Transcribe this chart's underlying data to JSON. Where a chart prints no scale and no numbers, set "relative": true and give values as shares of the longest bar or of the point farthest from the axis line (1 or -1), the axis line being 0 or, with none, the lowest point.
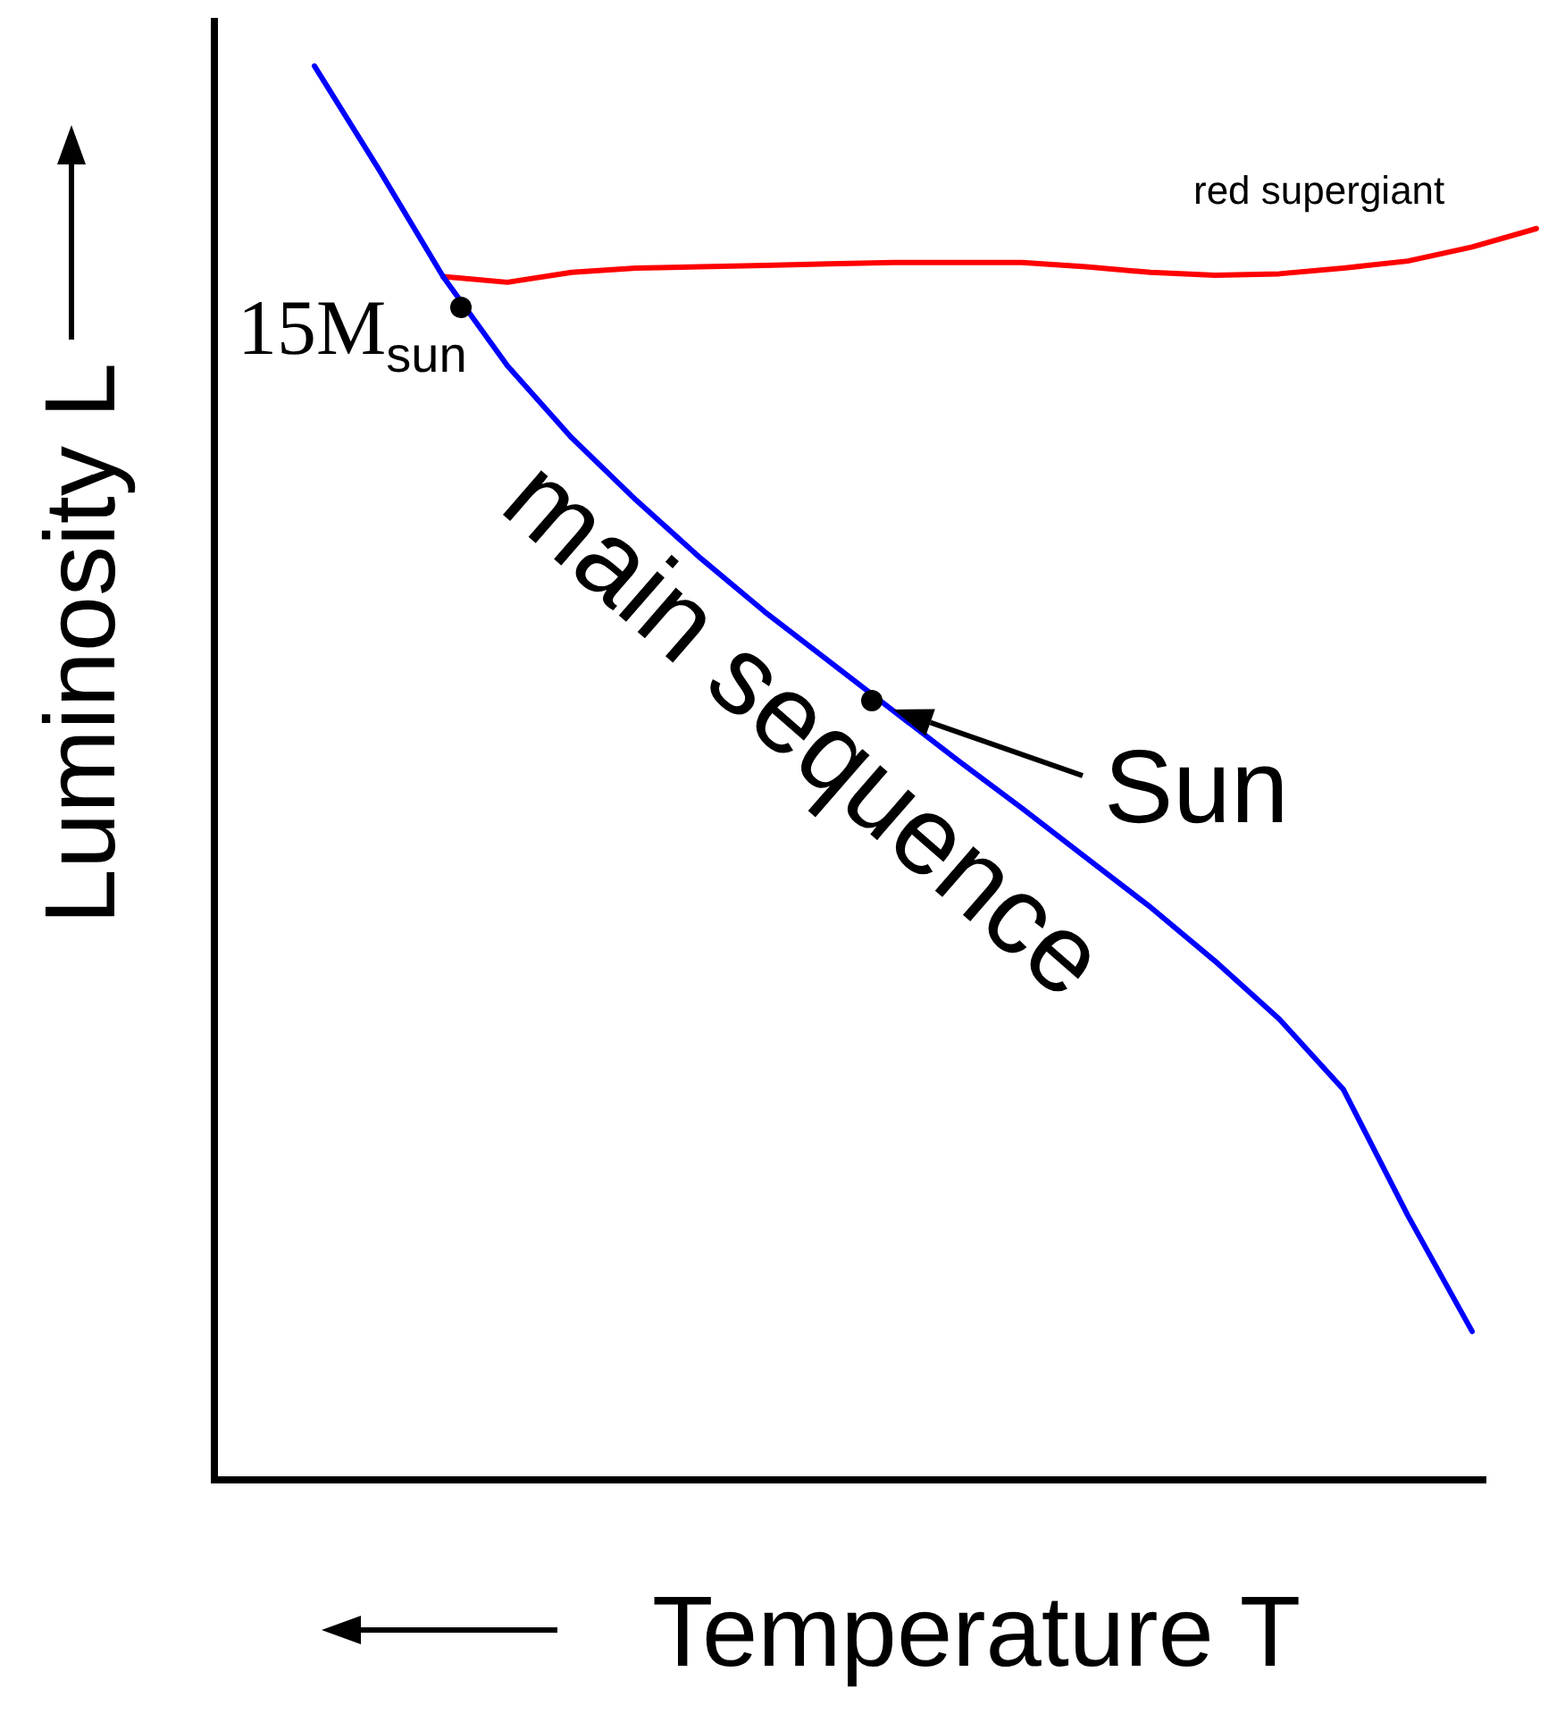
{
  "chart_data": {
    "type": "line",
    "relative": true,
    "xlabel": "Temperature T",
    "ylabel": "Luminosity L",
    "categories": [
      null,
      null,
      null,
      null,
      null,
      null,
      null,
      null,
      null,
      null,
      null,
      null,
      null,
      null,
      null,
      null,
      null,
      null,
      null,
      null
    ],
    "series": [
      {
        "name": "main sequence",
        "color": "#0000ff",
        "values": [
          1,
          0.927,
          0.851,
          0.788,
          0.737,
          0.693,
          0.652,
          0.614,
          0.579,
          0.544,
          0.509,
          0.475,
          0.44,
          0.405,
          0.367,
          0.326,
          0.276,
          0.187,
          0.105,
          null
        ]
      },
      {
        "name": "red supergiant",
        "color": "#ff0000",
        "values": [
          null,
          null,
          0.851,
          0.847,
          0.854,
          0.857,
          0.858,
          0.859,
          0.86,
          0.861,
          0.861,
          0.861,
          0.858,
          0.854,
          0.852,
          0.853,
          0.857,
          0.862,
          0.872,
          0.885
        ]
      }
    ],
    "annotations": [
      "15M$_{sun}$",
      "Sun"
    ],
    "legend": false
  }
}
